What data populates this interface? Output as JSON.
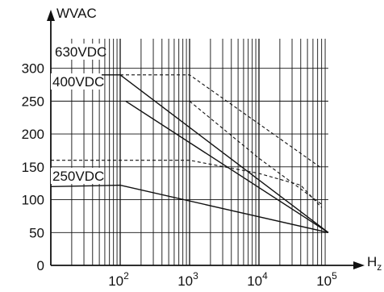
{
  "chart_data": {
    "type": "line",
    "title": "",
    "ylabel": "WVAC",
    "xlabel_base": "H",
    "xlabel_sub": "z",
    "xscale": "log",
    "xlim": [
      10,
      100000
    ],
    "ylim": [
      0,
      345
    ],
    "grid": true,
    "y_ticks": [
      "0",
      "50",
      "100",
      "150",
      "200",
      "250",
      "300"
    ],
    "x_ticks": [
      {
        "value": 100,
        "base": "10",
        "exp": "2"
      },
      {
        "value": 1000,
        "base": "10",
        "exp": "3"
      },
      {
        "value": 10000,
        "base": "10",
        "exp": "4"
      },
      {
        "value": 100000,
        "base": "10",
        "exp": "5"
      }
    ],
    "labels": [
      {
        "text": "630VDC",
        "series": "630VDC"
      },
      {
        "text": "400VDC",
        "series": "400VDC"
      },
      {
        "text": "250VDC",
        "series": "250VDC"
      }
    ],
    "series": [
      {
        "name": "630VDC",
        "style": "solid",
        "points": [
          [
            10,
            290
          ],
          [
            100,
            290
          ],
          [
            100000,
            50
          ]
        ]
      },
      {
        "name": "400VDC",
        "style": "solid",
        "points": [
          [
            120,
            250
          ],
          [
            100000,
            50
          ]
        ]
      },
      {
        "name": "250VDC",
        "style": "solid",
        "points": [
          [
            10,
            120
          ],
          [
            100,
            122
          ],
          [
            100000,
            50
          ]
        ]
      },
      {
        "name": "",
        "style": "dashed",
        "points": [
          [
            100,
            290
          ],
          [
            1000,
            290
          ],
          [
            80000,
            148
          ]
        ]
      },
      {
        "name": "",
        "style": "dashed",
        "points": [
          [
            1000,
            250
          ],
          [
            10000,
            163
          ],
          [
            80000,
            93
          ]
        ]
      },
      {
        "name": "",
        "style": "dashed",
        "points": [
          [
            10,
            160
          ],
          [
            1000,
            160
          ],
          [
            10000,
            140
          ],
          [
            40000,
            122
          ],
          [
            80000,
            88
          ]
        ]
      }
    ]
  }
}
